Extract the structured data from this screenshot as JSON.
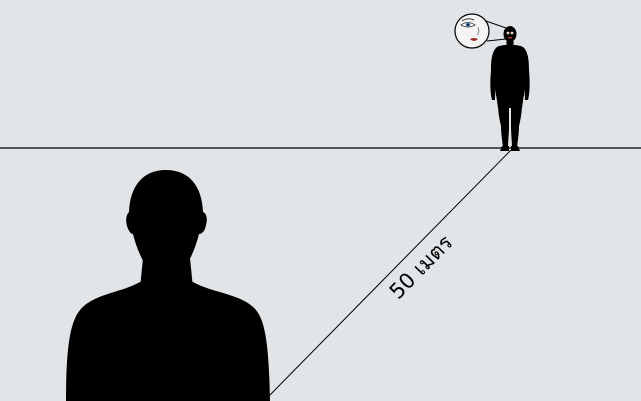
{
  "diagram": {
    "distance_label": "50 เมตร",
    "colors": {
      "background": "#e2e5e8",
      "silhouette": "#000000",
      "eye_iris": "#4a78a8",
      "lips": "#b23a2e",
      "face_highlight": "#f0cfc4"
    },
    "elements": [
      "observer-silhouette",
      "distant-person-silhouette",
      "face-zoom-callout",
      "horizon-line",
      "sightline"
    ]
  }
}
